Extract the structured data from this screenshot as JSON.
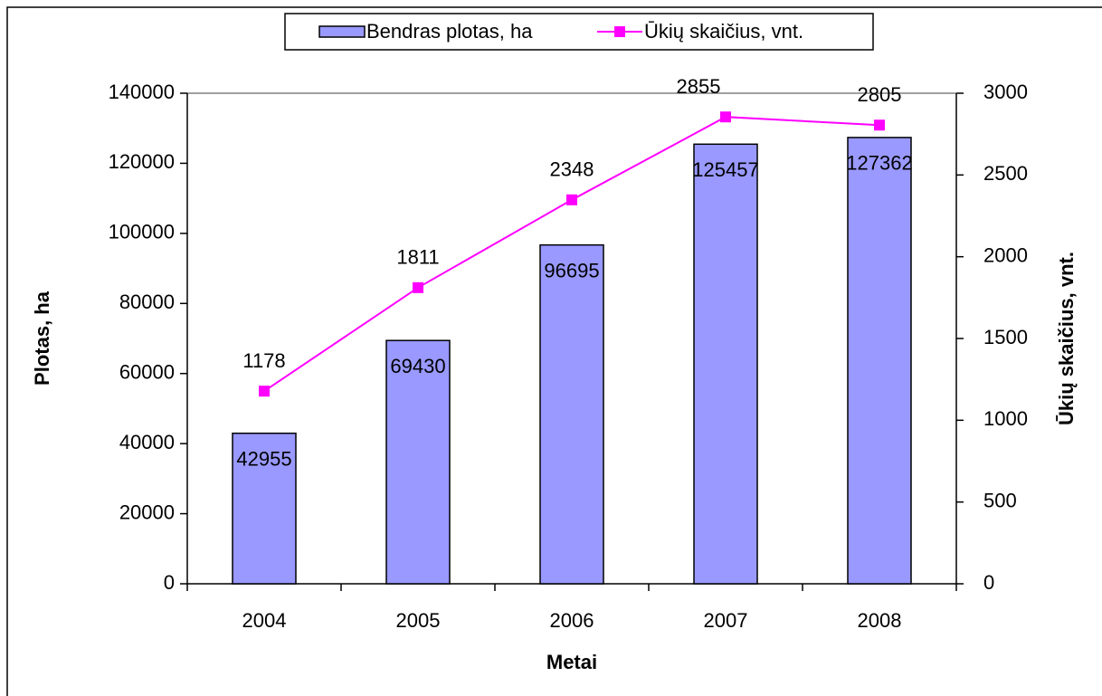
{
  "chart_data": {
    "type": "bar",
    "categories": [
      "2004",
      "2005",
      "2006",
      "2007",
      "2008"
    ],
    "series": [
      {
        "name": "Bendras plotas, ha",
        "type": "bar",
        "color": "#9999ff",
        "values": [
          42955,
          69430,
          96695,
          125457,
          127362
        ]
      },
      {
        "name": "Ūkių skaičius, vnt.",
        "type": "line",
        "axis": "y2",
        "color": "#ff00ff",
        "values": [
          1178,
          1811,
          2348,
          2855,
          2805
        ]
      }
    ],
    "ylabel": "Plotas, ha",
    "y2label": "Ūkių skaičius, vnt.",
    "xlabel": "Metai",
    "ylim": [
      0,
      140000
    ],
    "yticks": [
      0,
      20000,
      40000,
      60000,
      80000,
      100000,
      120000,
      140000
    ],
    "y2lim": [
      0,
      3000
    ],
    "y2ticks": [
      0,
      500,
      1000,
      1500,
      2000,
      2500,
      3000
    ],
    "legend": "top"
  }
}
